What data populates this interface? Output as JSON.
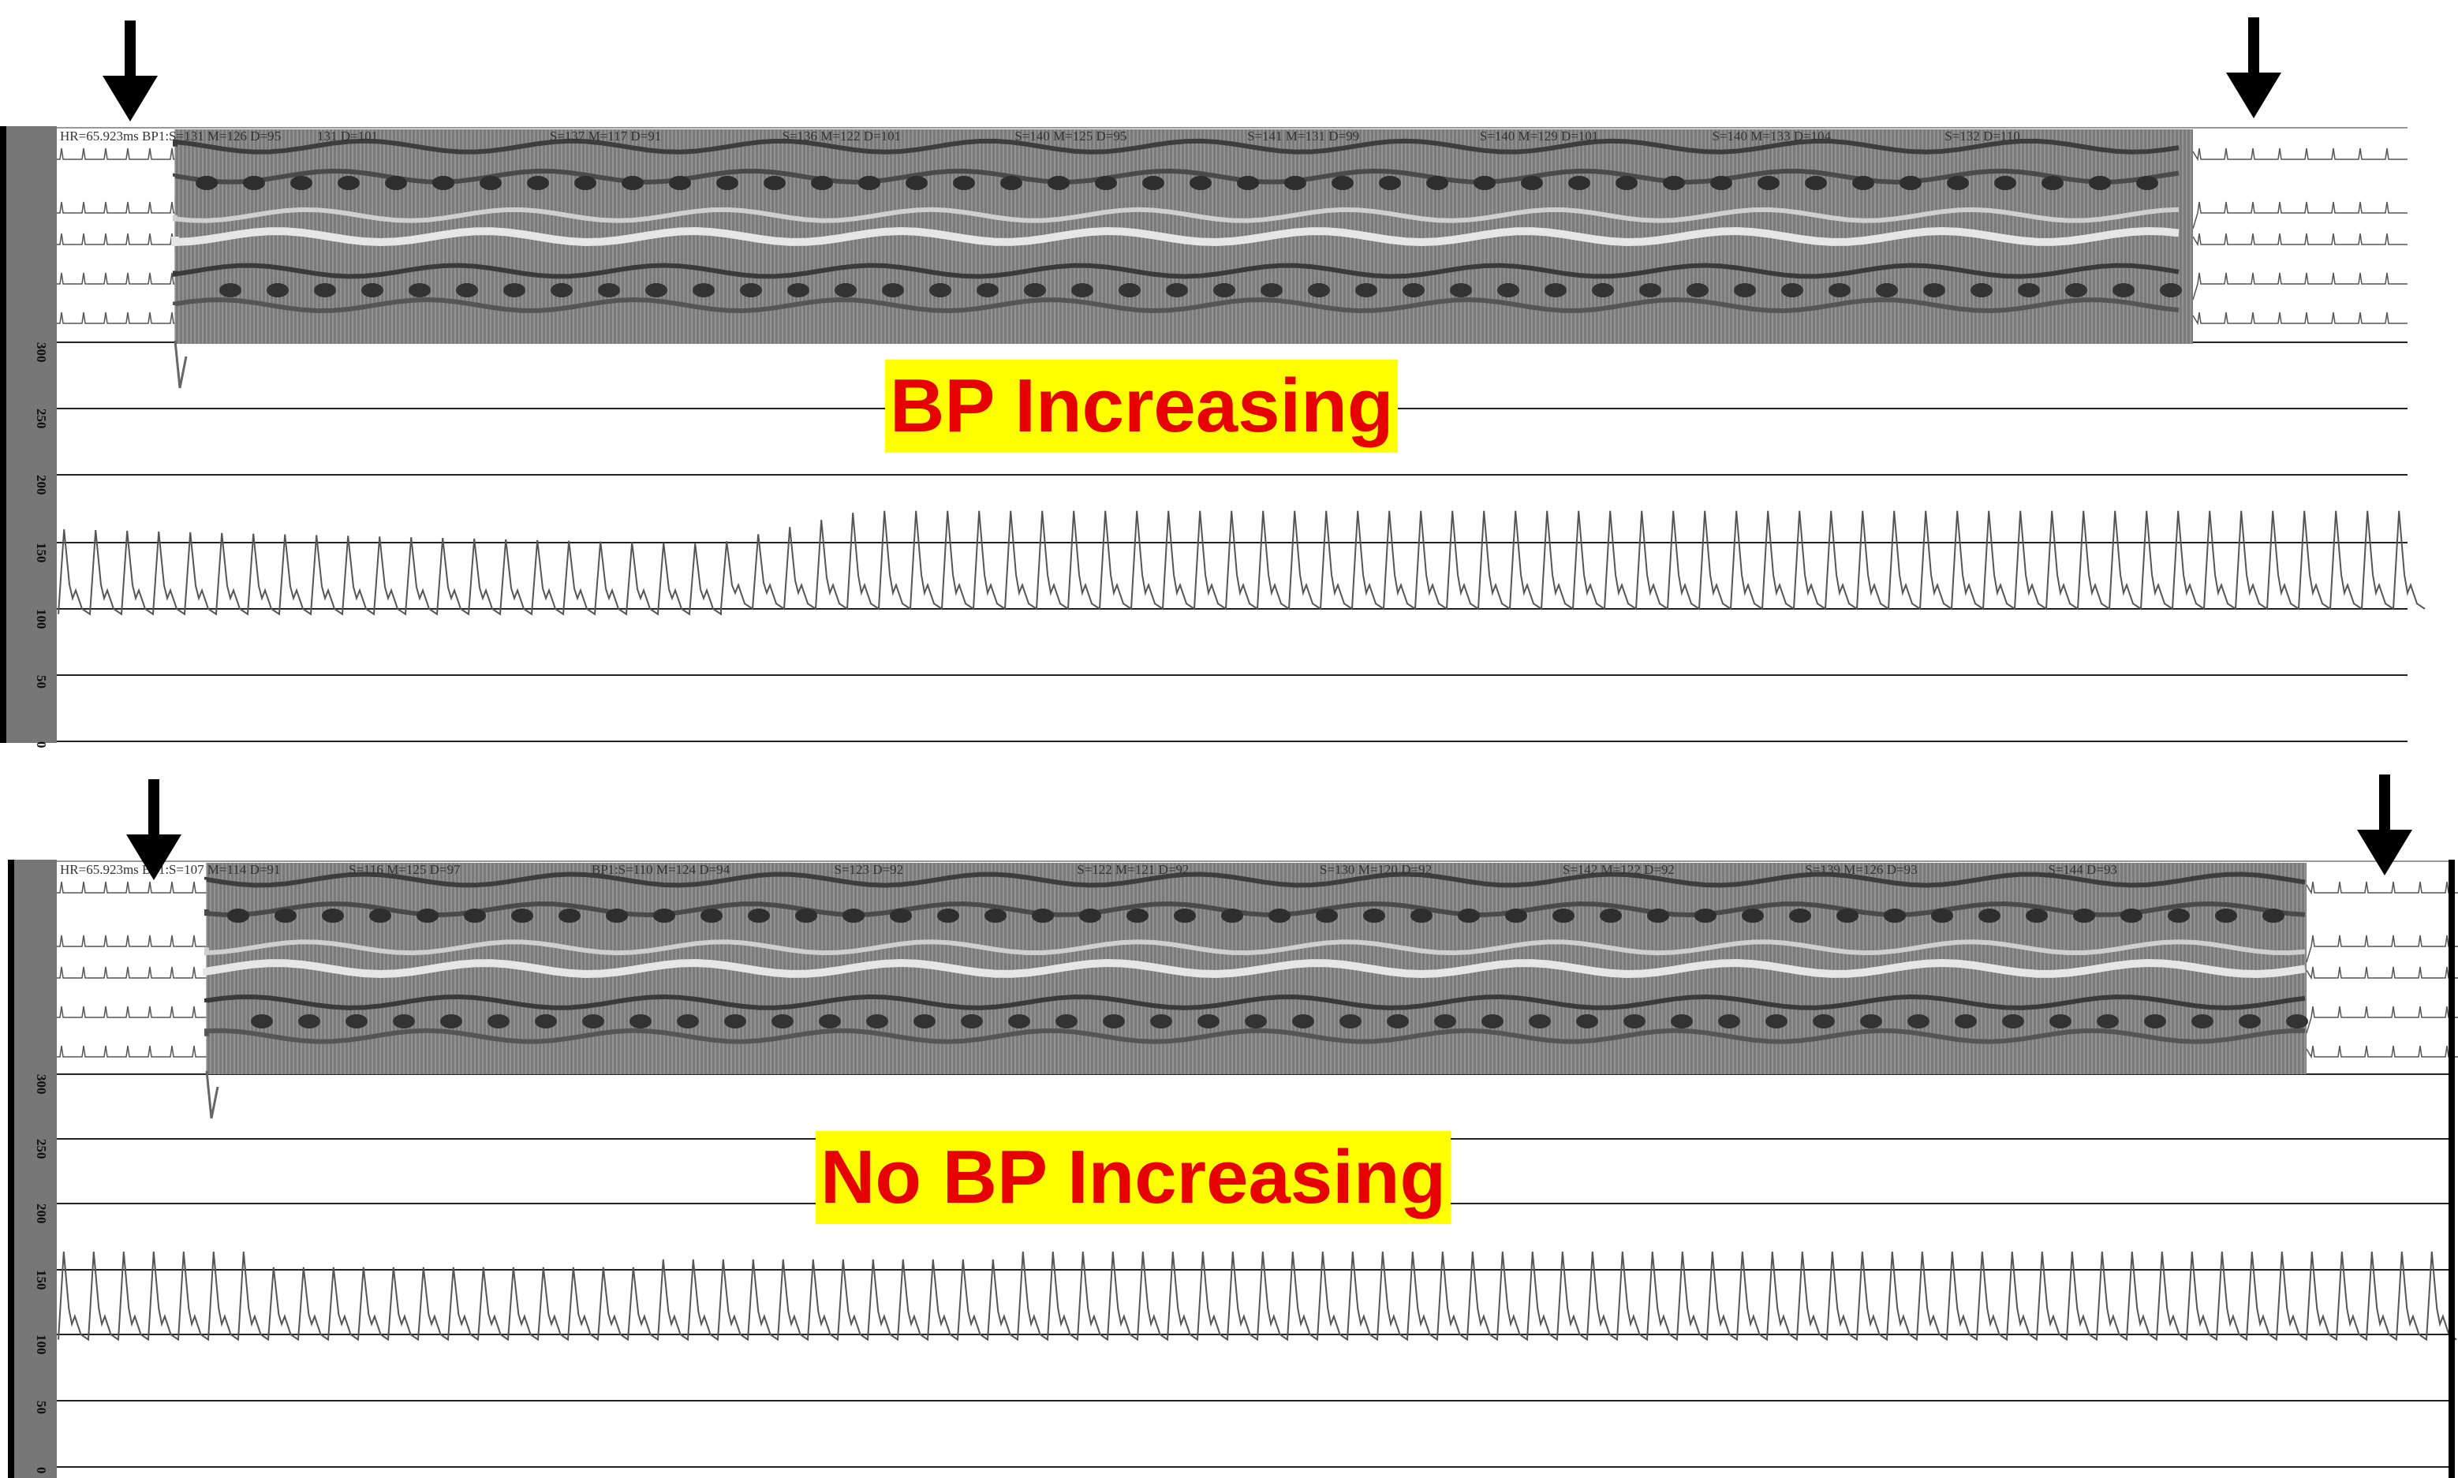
{
  "panels": [
    {
      "id": "top",
      "label": "BP Increasing",
      "header_text": [
        "HR=65.923ms  BP1:S=131 M=126 D=95",
        "131 D=101",
        "S=137 M=117 D=91",
        "S=136 M=122 D=101",
        "S=140 M=125 D=95",
        "S=141 M=131 D=99",
        "S=140 M=129 D=101",
        "S=140 M=133 D=104",
        "S=132 D=110"
      ],
      "y_ticks": [
        "300",
        "250",
        "200",
        "150",
        "100",
        "50",
        "0"
      ]
    },
    {
      "id": "bottom",
      "label": "No BP Increasing",
      "header_text": [
        "HR=65.923ms  BP1:S=107 M=114 D=91",
        "S=116 M=125 D=97",
        "BP1:S=110 M=124 D=94",
        "S=123 D=92",
        "S=122 M=121 D=92",
        "S=130 M=120 D=92",
        "S=142 M=122 D=92",
        "S=139 M=126 D=93",
        "S=144 D=93"
      ],
      "y_ticks": [
        "300",
        "250",
        "200",
        "150",
        "100",
        "50",
        "0"
      ]
    }
  ],
  "colors": {
    "banner_bg": "#ffff00",
    "banner_text": "#e60000",
    "gridline": "#222222",
    "trace": "#555555",
    "band": "#7a7a7a",
    "axis_bar": "#777777"
  }
}
